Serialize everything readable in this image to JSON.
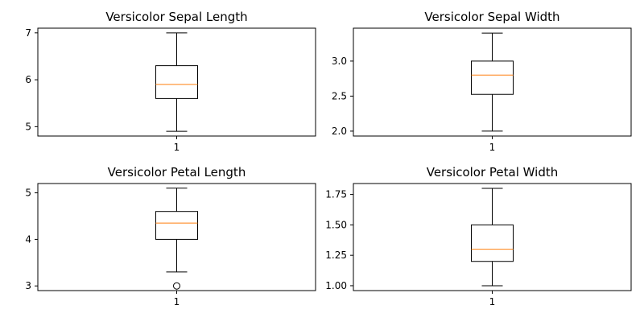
{
  "chart_data": [
    {
      "type": "box",
      "title": "Versicolor Sepal Length",
      "xlabel": "",
      "ylabel": "",
      "x_tick_labels": [
        "1"
      ],
      "ylim": [
        4.8,
        7.1
      ],
      "y_ticks": [
        5,
        6,
        7
      ],
      "y_tick_labels": [
        "5",
        "6",
        "7"
      ],
      "box": {
        "whisker_low": 4.9,
        "q1": 5.6,
        "median": 5.9,
        "q3": 6.3,
        "whisker_high": 7.0,
        "outliers": []
      },
      "grid": false
    },
    {
      "type": "box",
      "title": "Versicolor Sepal Width",
      "xlabel": "",
      "ylabel": "",
      "x_tick_labels": [
        "1"
      ],
      "ylim": [
        1.93,
        3.47
      ],
      "y_ticks": [
        2.0,
        2.5,
        3.0
      ],
      "y_tick_labels": [
        "2.0",
        "2.5",
        "3.0"
      ],
      "box": {
        "whisker_low": 2.0,
        "q1": 2.525,
        "median": 2.8,
        "q3": 3.0,
        "whisker_high": 3.4,
        "outliers": []
      },
      "grid": false
    },
    {
      "type": "box",
      "title": "Versicolor Petal Length",
      "xlabel": "",
      "ylabel": "",
      "x_tick_labels": [
        "1"
      ],
      "ylim": [
        2.9,
        5.2
      ],
      "y_ticks": [
        3,
        4,
        5
      ],
      "y_tick_labels": [
        "3",
        "4",
        "5"
      ],
      "box": {
        "whisker_low": 3.3,
        "q1": 4.0,
        "median": 4.35,
        "q3": 4.6,
        "whisker_high": 5.1,
        "outliers": [
          3.0
        ]
      },
      "grid": false
    },
    {
      "type": "box",
      "title": "Versicolor Petal Width",
      "xlabel": "",
      "ylabel": "",
      "x_tick_labels": [
        "1"
      ],
      "ylim": [
        0.96,
        1.84
      ],
      "y_ticks": [
        1.0,
        1.25,
        1.5,
        1.75
      ],
      "y_tick_labels": [
        "1.00",
        "1.25",
        "1.50",
        "1.75"
      ],
      "box": {
        "whisker_low": 1.0,
        "q1": 1.2,
        "median": 1.3,
        "q3": 1.5,
        "whisker_high": 1.8,
        "outliers": []
      },
      "grid": false
    }
  ],
  "colors": {
    "box_edge": "#000000",
    "median": "#ff7f0e",
    "background": "#ffffff"
  }
}
